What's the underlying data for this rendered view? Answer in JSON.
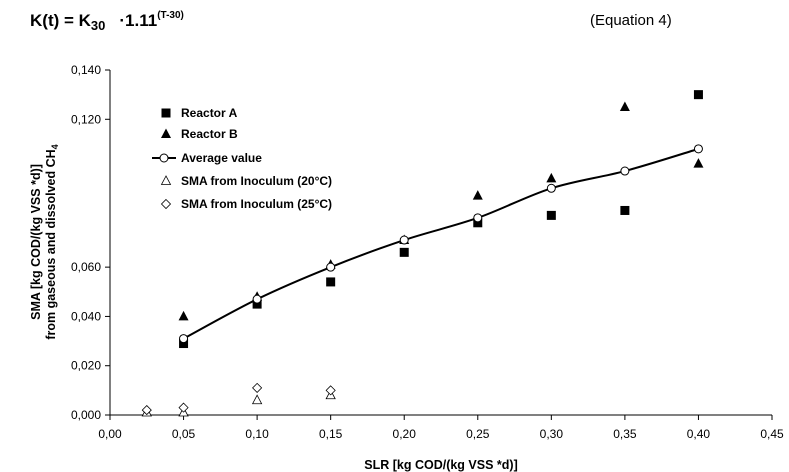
{
  "equation": {
    "lhs": "K(t) = K",
    "k_subscript": "30",
    "factor": "·1.11",
    "exponent": "(T-30)",
    "label": "(Equation 4)"
  },
  "chart_data": {
    "type": "scatter",
    "xlabel": "SLR [kg COD/(kg VSS *d)]",
    "ylabel_line1": "SMA [kg COD/(kg VSS *d)]",
    "ylabel_line2_main": "from gaseous and dissolved CH",
    "ylabel_line2_sub": "4",
    "xlim": [
      0.0,
      0.45
    ],
    "ylim": [
      0.0,
      0.14
    ],
    "x_ticks": [
      0.0,
      0.05,
      0.1,
      0.15,
      0.2,
      0.25,
      0.3,
      0.35,
      0.4,
      0.45
    ],
    "x_tick_labels": [
      "0,00",
      "0,05",
      "0,10",
      "0,15",
      "0,20",
      "0,25",
      "0,30",
      "0,35",
      "0,40",
      "0,45"
    ],
    "y_ticks": [
      0.0,
      0.02,
      0.04,
      0.06,
      0.12,
      0.14
    ],
    "y_tick_labels": [
      "0,000",
      "0,020",
      "0,040",
      "0,060",
      "0,120",
      "0,140"
    ],
    "grid": false,
    "legend_position": "top-left",
    "series": [
      {
        "name": "Reactor A",
        "marker": "filled-square",
        "line": false,
        "points": [
          [
            0.05,
            0.029
          ],
          [
            0.1,
            0.045
          ],
          [
            0.15,
            0.054
          ],
          [
            0.2,
            0.066
          ],
          [
            0.25,
            0.078
          ],
          [
            0.3,
            0.081
          ],
          [
            0.35,
            0.083
          ],
          [
            0.4,
            0.13
          ]
        ]
      },
      {
        "name": "Reactor B",
        "marker": "filled-triangle",
        "line": false,
        "points": [
          [
            0.05,
            0.04
          ],
          [
            0.1,
            0.048
          ],
          [
            0.15,
            0.061
          ],
          [
            0.2,
            0.071
          ],
          [
            0.25,
            0.089
          ],
          [
            0.3,
            0.096
          ],
          [
            0.35,
            0.125
          ],
          [
            0.4,
            0.102
          ]
        ]
      },
      {
        "name": "Average value",
        "marker": "open-circle",
        "line": true,
        "points": [
          [
            0.05,
            0.031
          ],
          [
            0.1,
            0.047
          ],
          [
            0.15,
            0.06
          ],
          [
            0.2,
            0.071
          ],
          [
            0.25,
            0.08
          ],
          [
            0.3,
            0.092
          ],
          [
            0.35,
            0.099
          ],
          [
            0.4,
            0.108
          ]
        ]
      },
      {
        "name": "SMA from Inoculum (20°C)",
        "marker": "open-triangle",
        "line": false,
        "points": [
          [
            0.025,
            0.001
          ],
          [
            0.05,
            0.001
          ],
          [
            0.1,
            0.006
          ],
          [
            0.15,
            0.008
          ]
        ]
      },
      {
        "name": "SMA from Inoculum (25°C)",
        "marker": "open-diamond",
        "line": false,
        "points": [
          [
            0.025,
            0.002
          ],
          [
            0.05,
            0.003
          ],
          [
            0.1,
            0.011
          ],
          [
            0.15,
            0.01
          ]
        ]
      }
    ]
  }
}
